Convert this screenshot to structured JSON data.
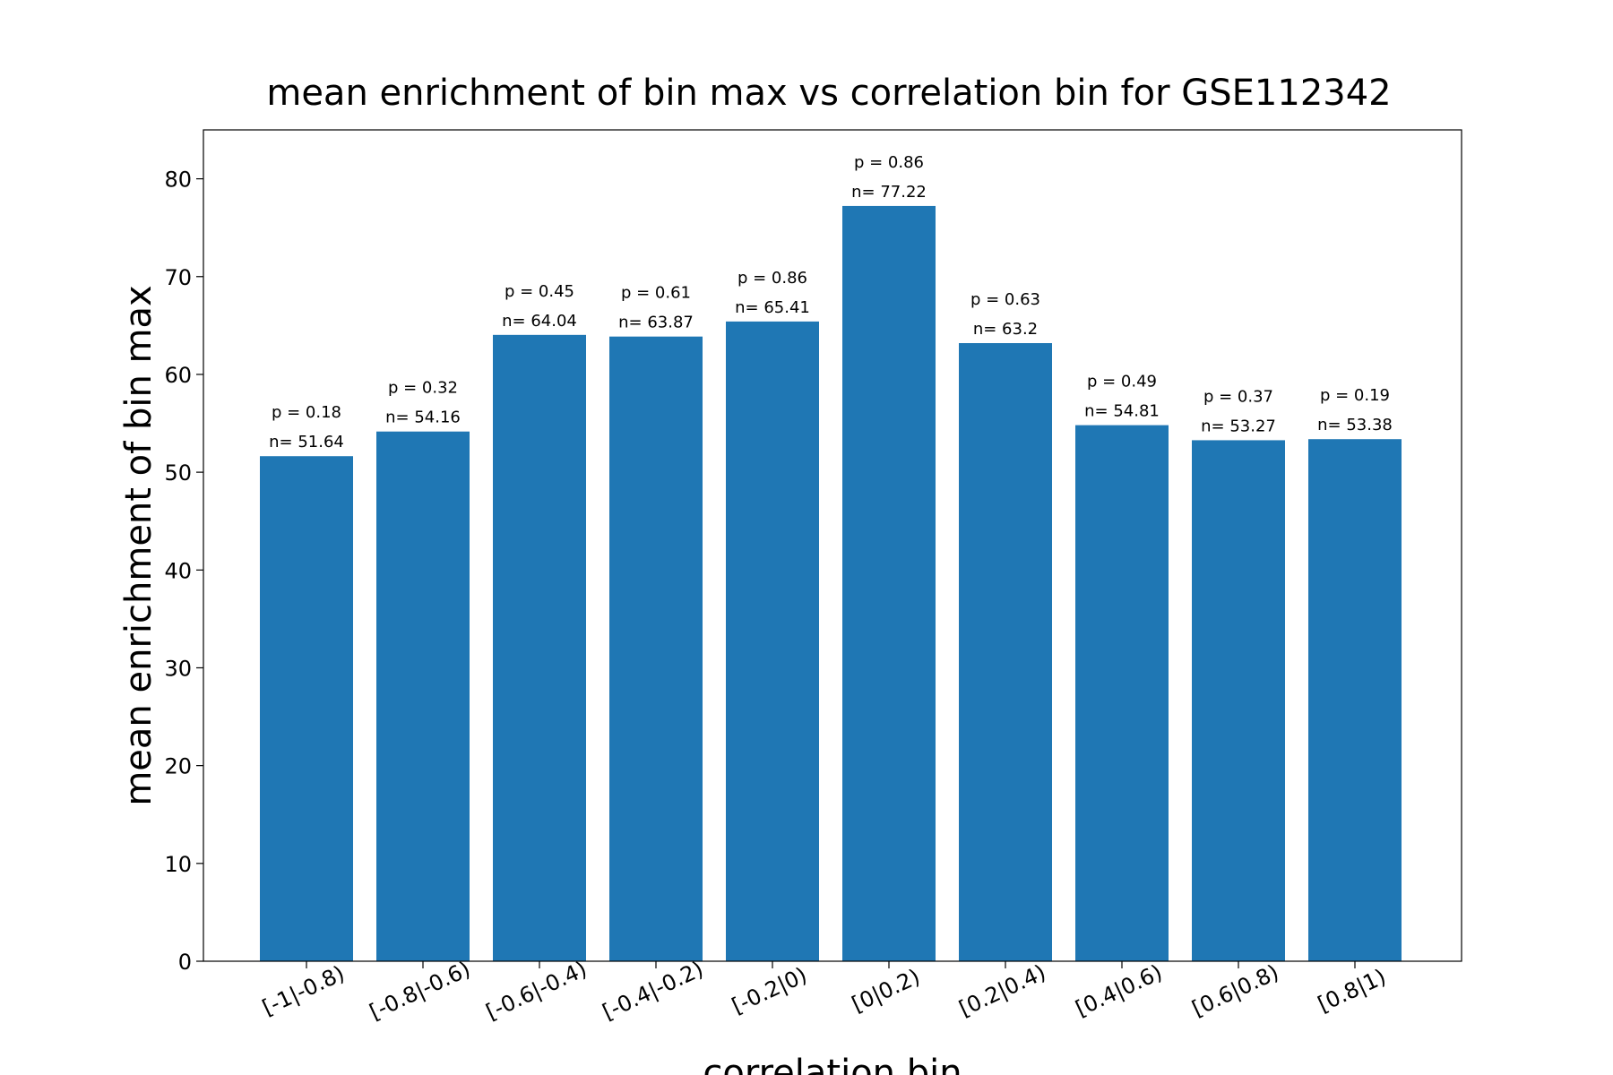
{
  "chart_data": {
    "type": "bar",
    "title": "mean enrichment of bin max vs correlation bin for GSE112342",
    "xlabel": "correlation bin",
    "ylabel": "mean enrichment of bin max",
    "ylim": [
      0,
      85
    ],
    "yticks": [
      0,
      10,
      20,
      30,
      40,
      50,
      60,
      70,
      80
    ],
    "grid": false,
    "bar_color": "#1f77b4",
    "categories": [
      "[-1|-0.8)",
      "[-0.8|-0.6)",
      "[-0.6|-0.4)",
      "[-0.4|-0.2)",
      "[-0.2|0)",
      "[0|0.2)",
      "[0.2|0.4)",
      "[0.4|0.6)",
      "[0.6|0.8)",
      "[0.8|1)"
    ],
    "values": [
      51.64,
      54.16,
      64.04,
      63.87,
      65.41,
      77.22,
      63.2,
      54.81,
      53.27,
      53.38
    ],
    "p_labels": [
      "p = 0.18",
      "p = 0.32",
      "p = 0.45",
      "p = 0.61",
      "p = 0.86",
      "p = 0.86",
      "p = 0.63",
      "p = 0.49",
      "p = 0.37",
      "p = 0.19"
    ],
    "n_labels": [
      "n= 51.64",
      "n= 54.16",
      "n= 64.04",
      "n= 63.87",
      "n= 65.41",
      "n= 77.22",
      "n= 63.2",
      "n= 54.81",
      "n= 53.27",
      "n= 53.38"
    ]
  }
}
